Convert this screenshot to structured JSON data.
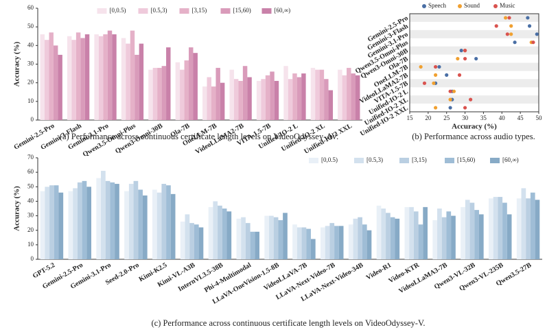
{
  "chart_data": [
    {
      "type": "bar",
      "caption": "(a) Performance across continuous certificate length levels on VideoOdyssey-AV.",
      "ylabel": "Accuracy (%)",
      "categories": [
        "Gemini-2.5-Pro",
        "Gemini-3-Flash",
        "Gemini-3.1-Pro",
        "Qwen3.5-Omni-Plus",
        "Qwen3-Omni-30B",
        "Ola-7B",
        "OneLLM-7B",
        "VideoLLaMA2-7B",
        "VITA-1.5-7B",
        "Unified-IO-2 L",
        "Unified-IO-2 XL",
        "Unified-IO-2 XXL"
      ],
      "series": [
        {
          "name": "[0,0.5)",
          "color": "#f6e3ec",
          "values": [
            46,
            45,
            46,
            44,
            27,
            31,
            18,
            27,
            21,
            29,
            28,
            27
          ]
        },
        {
          "name": "[0.5,3)",
          "color": "#efcadb",
          "values": [
            43,
            43,
            45,
            41,
            28,
            27,
            23,
            22,
            22,
            22,
            27,
            24
          ]
        },
        {
          "name": "[3,15)",
          "color": "#e5b1c8",
          "values": [
            47,
            47,
            46,
            48,
            28,
            32,
            18,
            21,
            24,
            25,
            27,
            28
          ]
        },
        {
          "name": "[15,60)",
          "color": "#d99bba",
          "values": [
            40,
            44,
            48,
            35,
            29,
            39,
            28,
            29,
            26,
            23,
            22,
            25
          ]
        },
        {
          "name": "[60,∞)",
          "color": "#c981a9",
          "values": [
            35,
            46,
            46,
            41,
            39,
            36,
            20,
            23,
            21,
            25,
            16,
            24
          ]
        }
      ],
      "ylim": [
        0,
        60
      ],
      "yticks": [
        0,
        10,
        20,
        30,
        40,
        50,
        60
      ],
      "legend": "upper center",
      "grid": false
    },
    {
      "type": "dot",
      "caption": "(b) Performance across audio types.",
      "xlabel": "Accuracy (%)",
      "categories": [
        "Gemini-2.5-Pro",
        "Gemini-3-Flash",
        "Gemini-3.1-Pro",
        "Qwen3.5-Omni-Plus",
        "Qwen3-Omni-30B",
        "Ola-7B",
        "OneLLM-7B",
        "VideoLLaMA2-7B",
        "VITA-1.5-7B",
        "Unified-IO-2 L",
        "Unified-IO-2 XL",
        "Unified-IO-2 XXL"
      ],
      "series": [
        {
          "name": "Speech",
          "color": "#4a6fa5",
          "values": [
            47,
            47.5,
            49.5,
            43.5,
            29,
            33,
            23,
            25,
            22,
            26.5,
            26.5,
            26
          ]
        },
        {
          "name": "Sound",
          "color": "#f0a030",
          "values": [
            41,
            42.5,
            42.5,
            48,
            30,
            28,
            18,
            22,
            21.5,
            27,
            26,
            22
          ]
        },
        {
          "name": "Music",
          "color": "#d9534f",
          "values": [
            42,
            38.5,
            41.5,
            48.5,
            30,
            30,
            22,
            28.5,
            19,
            26,
            31.5,
            30
          ]
        }
      ],
      "xlim": [
        15,
        50
      ],
      "xticks": [
        15,
        20,
        25,
        30,
        35,
        40,
        45,
        50
      ],
      "legend": "upper center",
      "grid": true
    },
    {
      "type": "bar",
      "caption": "(c) Performance across continuous certificate length levels on VideoOdyssey-V.",
      "ylabel": "Accuracy (%)",
      "categories": [
        "GPT-5.2",
        "Gemini-2.5-Pro",
        "Gemini-3.1-Pro",
        "Seed-2.0-Pro",
        "Kimi-K2.5",
        "Kimi-VL-A3B",
        "InternVL3.5-38B",
        "Phi-4-Multimodal",
        "LLaVA-OneVision-1.5-8B",
        "VideoLLaVA-7B",
        "LLaVA-Next-Video-7B",
        "LLaVA-Next-Video-34B",
        "Video-R1",
        "Video-KTR",
        "VideoLLaMA3-7B",
        "Qwen3-VL-32B",
        "Qwen3-VL-235B",
        "Qwen3.5-27B"
      ],
      "series": [
        {
          "name": "[0,0.5)",
          "color": "#e9f0f7",
          "values": [
            47,
            47,
            56,
            47,
            48,
            26,
            36,
            28,
            30,
            24,
            22,
            24,
            37,
            36,
            27,
            36,
            42,
            42
          ]
        },
        {
          "name": "[0.5,3)",
          "color": "#d3e1ee",
          "values": [
            50,
            49,
            61,
            52,
            46,
            31,
            40,
            29,
            30,
            22,
            23,
            28,
            35,
            36,
            35,
            41,
            43,
            49
          ]
        },
        {
          "name": "[3,15)",
          "color": "#bacfe2",
          "values": [
            51,
            53,
            54,
            54,
            52,
            25,
            37,
            25,
            29,
            22,
            25,
            29,
            32,
            33,
            29,
            39,
            43,
            42
          ]
        },
        {
          "name": "[15,60)",
          "color": "#9fbdd6",
          "values": [
            51,
            54,
            53,
            48,
            51,
            24,
            35,
            19,
            27,
            21,
            23,
            24,
            29,
            24,
            33,
            34,
            39,
            46
          ]
        },
        {
          "name": "[60,∞)",
          "color": "#87aac6",
          "values": [
            46,
            50,
            52,
            44,
            45,
            22,
            33,
            19,
            32,
            14,
            23,
            20,
            28,
            36,
            30,
            31,
            31,
            41
          ]
        }
      ],
      "ylim": [
        0,
        70
      ],
      "yticks": [
        0,
        10,
        20,
        30,
        40,
        50,
        60,
        70
      ],
      "legend": "upper right",
      "grid": false
    }
  ]
}
